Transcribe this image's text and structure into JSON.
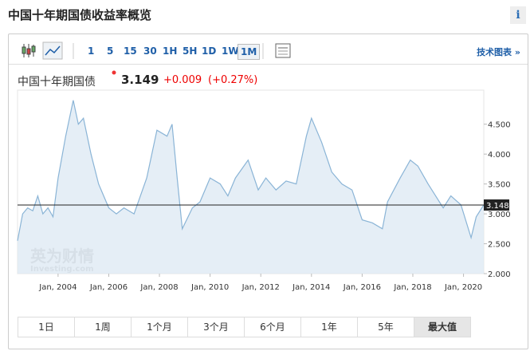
{
  "header": {
    "title": "中国十年期国债收益率概览",
    "info": "i"
  },
  "toolbar": {
    "intervals": [
      "1",
      "5",
      "15",
      "30",
      "1H",
      "5H",
      "1D",
      "1W",
      "1M"
    ],
    "technical": "技术图表 »"
  },
  "quote": {
    "name": "中国十年期国债",
    "last": "3.149",
    "change": "+0.009",
    "change_pct": "(+0.27%)"
  },
  "chart_data": {
    "type": "area",
    "color": "#8ab4d6",
    "fill": "#dfeaf4",
    "x": [
      2002.4,
      2002.6,
      2002.8,
      2003.0,
      2003.2,
      2003.4,
      2003.6,
      2003.8,
      2004.0,
      2004.3,
      2004.6,
      2004.8,
      2005.0,
      2005.3,
      2005.6,
      2005.8,
      2006.0,
      2006.3,
      2006.6,
      2007.0,
      2007.5,
      2007.9,
      2008.3,
      2008.5,
      2008.7,
      2008.9,
      2009.3,
      2009.6,
      2010.0,
      2010.4,
      2010.7,
      2011.0,
      2011.5,
      2011.9,
      2012.2,
      2012.6,
      2013.0,
      2013.4,
      2013.8,
      2014.0,
      2014.4,
      2014.8,
      2015.2,
      2015.6,
      2016.0,
      2016.4,
      2016.8,
      2017.0,
      2017.5,
      2017.9,
      2018.2,
      2018.6,
      2018.9,
      2019.2,
      2019.5,
      2019.9,
      2020.3,
      2020.5,
      2020.8
    ],
    "values": [
      2.55,
      3.0,
      3.1,
      3.05,
      3.3,
      3.0,
      3.1,
      2.95,
      3.6,
      4.3,
      4.9,
      4.5,
      4.6,
      4.0,
      3.5,
      3.3,
      3.1,
      3.0,
      3.1,
      3.0,
      3.6,
      4.4,
      4.3,
      4.5,
      3.6,
      2.75,
      3.1,
      3.2,
      3.6,
      3.5,
      3.3,
      3.6,
      3.9,
      3.4,
      3.6,
      3.4,
      3.55,
      3.5,
      4.3,
      4.6,
      4.2,
      3.7,
      3.5,
      3.4,
      2.9,
      2.85,
      2.75,
      3.2,
      3.6,
      3.9,
      3.8,
      3.5,
      3.3,
      3.1,
      3.3,
      3.15,
      2.6,
      2.95,
      3.15
    ],
    "xlim": [
      2002.4,
      2020.8
    ],
    "ylim": [
      2.0,
      5.07
    ],
    "xticks": [
      {
        "value": 2004,
        "label": "Jan, 2004"
      },
      {
        "value": 2006,
        "label": "Jan, 2006"
      },
      {
        "value": 2008,
        "label": "Jan, 2008"
      },
      {
        "value": 2010,
        "label": "Jan, 2010"
      },
      {
        "value": 2012,
        "label": "Jan, 2012"
      },
      {
        "value": 2014,
        "label": "Jan, 2014"
      },
      {
        "value": 2016,
        "label": "Jan, 2016"
      },
      {
        "value": 2018,
        "label": "Jan, 2018"
      },
      {
        "value": 2020,
        "label": "Jan, 2020"
      }
    ],
    "yticks": [
      {
        "value": 2.0,
        "label": "2.000"
      },
      {
        "value": 2.5,
        "label": "2.500"
      },
      {
        "value": 3.0,
        "label": "3.000"
      },
      {
        "value": 3.5,
        "label": "3.500"
      },
      {
        "value": 4.0,
        "label": "4.000"
      },
      {
        "value": 4.5,
        "label": "4.500"
      }
    ],
    "last_value": {
      "value": 3.148,
      "label": "3.148"
    },
    "watermark": {
      "brand": "英为财情",
      "site": "Investing.com"
    }
  },
  "ranges": [
    "1日",
    "1周",
    "1个月",
    "3个月",
    "6个月",
    "1年",
    "5年",
    "最大值"
  ]
}
